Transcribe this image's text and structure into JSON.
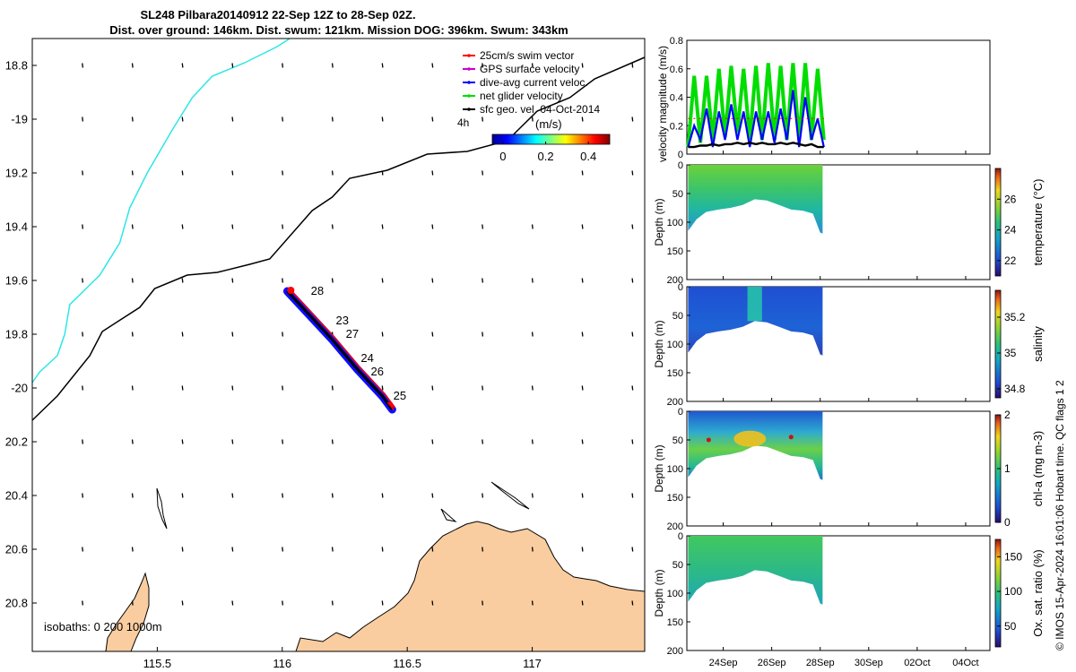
{
  "title_line1": "SL248 Pilbara20140912 22-Sep 12Z to 28-Sep 02Z.",
  "title_line2": "Dist. over ground: 146km. Dist. swum: 121km. Mission DOG: 396km. Swum: 343km",
  "credit": "© IMOS 15-Apr-2024 16:01:06 Hobart time. QC flags 1  2",
  "colors": {
    "land": "#F9CDA0",
    "track": "#FF0000",
    "dive_avg": "#0000FF",
    "net_glider": "#00DD00",
    "sfc_geo": "#000000",
    "gps": "#CC00CC",
    "isobath_0": "#2EE6E6",
    "isobath_200": "#000000"
  },
  "map": {
    "legend": {
      "items": [
        {
          "label": "25cm/s swim vector",
          "color": "#FF0000"
        },
        {
          "label": "GPS surface velocity",
          "color": "#CC00CC"
        },
        {
          "label": "dive-avg current veloc.",
          "color": "#0000FF"
        },
        {
          "label": "net glider velocity",
          "color": "#00DD00"
        },
        {
          "label": "sfc geo. vel. 04-Oct-2014",
          "color": "#000000"
        }
      ],
      "interval": "4h"
    },
    "colorbar": {
      "label": "(m/s)",
      "ticks": [
        "0",
        "0.2",
        "0.4"
      ],
      "range": [
        -0.05,
        0.5
      ]
    },
    "isobaths_label": "isobaths: 0  200  1000m",
    "xlim": [
      115.0,
      117.45
    ],
    "ylim": [
      -20.98,
      -18.7
    ],
    "xticks": [
      {
        "v": 115.5,
        "t": "115.5"
      },
      {
        "v": 116,
        "t": "116"
      },
      {
        "v": 116.5,
        "t": "116.5"
      },
      {
        "v": 117,
        "t": "117"
      }
    ],
    "yticks": [
      {
        "v": -18.8,
        "t": "18.8"
      },
      {
        "v": -19,
        "t": "-19"
      },
      {
        "v": -19.2,
        "t": "19.2"
      },
      {
        "v": -19.4,
        "t": "19.4"
      },
      {
        "v": -19.6,
        "t": "19.6"
      },
      {
        "v": -19.8,
        "t": "19.8"
      },
      {
        "v": -20,
        "t": "-20"
      },
      {
        "v": -20.2,
        "t": "20.2"
      },
      {
        "v": -20.4,
        "t": "20.4"
      },
      {
        "v": -20.6,
        "t": "20.6"
      },
      {
        "v": -20.8,
        "t": "20.8"
      }
    ],
    "day_labels": [
      {
        "t": "28",
        "lon": 116.1,
        "lat": -19.64
      },
      {
        "t": "23",
        "lon": 116.2,
        "lat": -19.75
      },
      {
        "t": "27",
        "lon": 116.24,
        "lat": -19.8
      },
      {
        "t": "24",
        "lon": 116.3,
        "lat": -19.89
      },
      {
        "t": "26",
        "lon": 116.34,
        "lat": -19.94
      },
      {
        "t": "25",
        "lon": 116.43,
        "lat": -20.03
      }
    ],
    "track": [
      [
        116.02,
        -19.64
      ],
      [
        116.1,
        -19.72
      ],
      [
        116.2,
        -19.82
      ],
      [
        116.3,
        -19.93
      ],
      [
        116.4,
        -20.03
      ],
      [
        116.44,
        -20.08
      ]
    ],
    "isobath_0": [
      [
        115.0,
        -19.98
      ],
      [
        115.03,
        -19.94
      ],
      [
        115.1,
        -19.88
      ],
      [
        115.13,
        -19.8
      ],
      [
        115.15,
        -19.69
      ],
      [
        115.27,
        -19.58
      ],
      [
        115.35,
        -19.46
      ],
      [
        115.39,
        -19.33
      ],
      [
        115.46,
        -19.2
      ],
      [
        115.56,
        -19.04
      ],
      [
        115.64,
        -18.92
      ],
      [
        115.72,
        -18.84
      ],
      [
        115.85,
        -18.79
      ],
      [
        115.98,
        -18.73
      ],
      [
        116.03,
        -18.7
      ]
    ],
    "isobath_200": [
      [
        115.0,
        -20.12
      ],
      [
        115.1,
        -20.03
      ],
      [
        115.23,
        -19.88
      ],
      [
        115.28,
        -19.79
      ],
      [
        115.43,
        -19.7
      ],
      [
        115.49,
        -19.63
      ],
      [
        115.62,
        -19.58
      ],
      [
        115.74,
        -19.57
      ],
      [
        115.87,
        -19.54
      ],
      [
        115.95,
        -19.52
      ],
      [
        116.12,
        -19.34
      ],
      [
        116.2,
        -19.29
      ],
      [
        116.27,
        -19.22
      ],
      [
        116.42,
        -19.19
      ],
      [
        116.58,
        -19.13
      ],
      [
        116.74,
        -19.12
      ],
      [
        116.9,
        -19.08
      ],
      [
        117.02,
        -18.97
      ],
      [
        117.15,
        -18.92
      ],
      [
        117.25,
        -18.85
      ],
      [
        117.45,
        -18.77
      ]
    ]
  },
  "panels": {
    "depth_label": "Depth (m)",
    "depth_ticks": [
      "0",
      "50",
      "100",
      "150",
      "200"
    ],
    "time_ticks": [
      "24Sep",
      "26Sep",
      "28Sep",
      "30Sep",
      "02Oct",
      "04Oct"
    ],
    "velocity": {
      "ylabel": "velocity magnitude (m/s)",
      "yticks": [
        "0",
        "0.2",
        "0.4",
        "0.6",
        "0.8"
      ]
    },
    "temperature": {
      "cblabel": "temperature (°C)",
      "cbticks": [
        "22",
        "24",
        "26"
      ]
    },
    "salinity": {
      "cblabel": "salinity",
      "cbticks": [
        "34.8",
        "35",
        "35.2"
      ]
    },
    "chla": {
      "cblabel": "chl-a (mg m-3)",
      "cbticks": [
        "0",
        "1",
        "2"
      ]
    },
    "oxygen": {
      "cblabel": "Ox. sat. ratio (%)",
      "cbticks": [
        "50",
        "100",
        "150"
      ]
    }
  },
  "chart_data": [
    {
      "type": "line",
      "title": "",
      "ylabel": "velocity magnitude (m/s)",
      "xlabel": "",
      "x_range": [
        "22-Sep 12Z",
        "05-Oct"
      ],
      "ylim": [
        0,
        0.8
      ],
      "series": [
        {
          "name": "net glider velocity",
          "color": "#00DD00",
          "values": [
            0.05,
            0.55,
            0.08,
            0.55,
            0.1,
            0.6,
            0.12,
            0.62,
            0.15,
            0.6,
            0.1,
            0.62,
            0.1,
            0.64,
            0.1,
            0.62,
            0.1,
            0.64,
            0.1,
            0.64,
            0.1,
            0.6,
            0.1
          ]
        },
        {
          "name": "dive-avg current veloc.",
          "color": "#0000FF",
          "values": [
            0.05,
            0.2,
            0.1,
            0.32,
            0.05,
            0.3,
            0.1,
            0.35,
            0.1,
            0.3,
            0.05,
            0.3,
            0.1,
            0.3,
            0.08,
            0.32,
            0.1,
            0.45,
            0.05,
            0.4,
            0.1,
            0.25,
            0.05
          ]
        },
        {
          "name": "sfc geo. vel. 04-Oct-2014",
          "color": "#000000",
          "values": [
            0.05,
            0.05,
            0.06,
            0.06,
            0.07,
            0.06,
            0.07,
            0.07,
            0.08,
            0.07,
            0.08,
            0.07,
            0.08,
            0.07,
            0.07,
            0.08,
            0.07,
            0.08,
            0.07,
            0.06,
            0.07,
            0.05,
            0.05
          ]
        },
        {
          "name": "25cm/s swim vector",
          "color": "#FF0000",
          "values": [
            0.25,
            0.25,
            0.25,
            0.25,
            0.25,
            0.25,
            0.25,
            0.25,
            0.25,
            0.25,
            0.25,
            0.25,
            0.25,
            0.25,
            0.25,
            0.25,
            0.25,
            0.25,
            0.25,
            0.25,
            0.25,
            0.25,
            0.25
          ]
        }
      ]
    },
    {
      "type": "heatmap",
      "title": "",
      "ylabel": "Depth (m)",
      "xlabel": "",
      "ylim": [
        200,
        0
      ],
      "cblabel": "temperature (°C)",
      "clim": [
        21,
        28
      ],
      "x_range": [
        "22-Sep 12Z",
        "05-Oct"
      ]
    },
    {
      "type": "heatmap",
      "title": "",
      "ylabel": "Depth (m)",
      "xlabel": "",
      "ylim": [
        200,
        0
      ],
      "cblabel": "salinity",
      "clim": [
        34.75,
        35.35
      ],
      "x_range": [
        "22-Sep 12Z",
        "05-Oct"
      ]
    },
    {
      "type": "heatmap",
      "title": "",
      "ylabel": "Depth (m)",
      "xlabel": "",
      "ylim": [
        200,
        0
      ],
      "cblabel": "chl-a (mg m-3)",
      "clim": [
        0,
        2
      ],
      "x_range": [
        "22-Sep 12Z",
        "05-Oct"
      ]
    },
    {
      "type": "heatmap",
      "title": "",
      "ylabel": "Depth (m)",
      "xlabel": "",
      "ylim": [
        200,
        0
      ],
      "cblabel": "Ox. sat. ratio (%)",
      "clim": [
        20,
        175
      ],
      "x_range": [
        "22-Sep 12Z",
        "05-Oct"
      ]
    }
  ]
}
